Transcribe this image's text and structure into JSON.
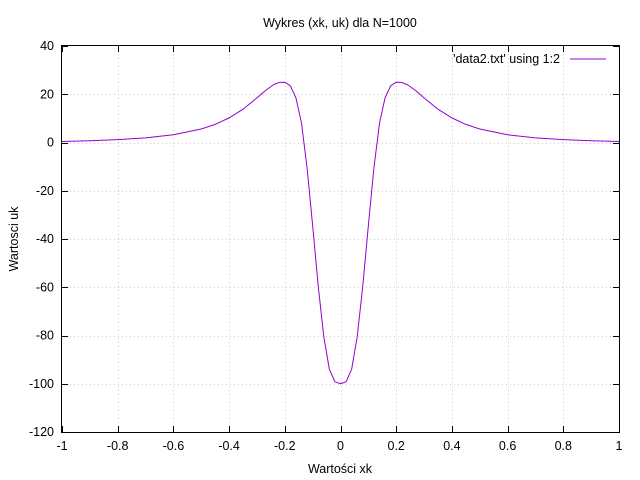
{
  "chart_data": {
    "type": "line",
    "title": "Wykres (xk, uk) dla N=1000",
    "xlabel": "Wartości xk",
    "ylabel": "Wartosci uk",
    "xlim": [
      -1,
      1
    ],
    "ylim": [
      -120,
      40
    ],
    "x_ticks": [
      "-1",
      "-0.8",
      "-0.6",
      "-0.4",
      "-0.2",
      "0",
      "0.2",
      "0.4",
      "0.6",
      "0.8",
      "1"
    ],
    "x_tick_values": [
      -1,
      -0.8,
      -0.6,
      -0.4,
      -0.2,
      0,
      0.2,
      0.4,
      0.6,
      0.8,
      1
    ],
    "y_ticks": [
      "40",
      "20",
      "0",
      "-20",
      "-40",
      "-60",
      "-80",
      "-100",
      "-120"
    ],
    "y_tick_values": [
      40,
      20,
      0,
      -20,
      -40,
      -60,
      -80,
      -100,
      -120
    ],
    "grid": true,
    "legend_position": "top-right",
    "series": [
      {
        "name": "'data2.txt' using 1:2",
        "color": "#9400d3",
        "x": [
          -1,
          -0.9,
          -0.8,
          -0.7,
          -0.6,
          -0.5,
          -0.45,
          -0.4,
          -0.35,
          -0.3,
          -0.27,
          -0.24,
          -0.22,
          -0.2,
          -0.18,
          -0.16,
          -0.14,
          -0.12,
          -0.1,
          -0.08,
          -0.06,
          -0.04,
          -0.02,
          0,
          0.02,
          0.04,
          0.06,
          0.08,
          0.1,
          0.12,
          0.14,
          0.16,
          0.18,
          0.2,
          0.22,
          0.24,
          0.27,
          0.3,
          0.35,
          0.4,
          0.45,
          0.5,
          0.6,
          0.7,
          0.8,
          0.9,
          1
        ],
        "y": [
          0.4,
          0.7,
          1.2,
          1.9,
          3.2,
          5.6,
          7.5,
          10.2,
          13.8,
          18.5,
          21.5,
          24,
          24.9,
          25,
          23.5,
          18.5,
          8,
          -10.5,
          -34.5,
          -59.5,
          -80.5,
          -94,
          -99.2,
          -100,
          -99.2,
          -94,
          -80.5,
          -59.5,
          -34.5,
          -10.5,
          8,
          18.5,
          23.5,
          25,
          24.9,
          24,
          21.5,
          18.5,
          13.8,
          10.2,
          7.5,
          5.6,
          3.2,
          1.9,
          1.2,
          0.7,
          0.4
        ]
      }
    ]
  }
}
